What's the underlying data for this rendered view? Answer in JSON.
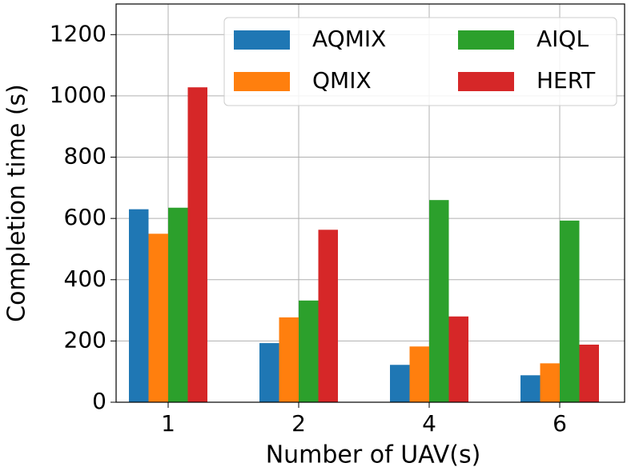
{
  "chart_data": {
    "type": "bar",
    "x_label": "Number of UAV(s)",
    "y_label": "Completion time (s)",
    "categories": [
      "1",
      "2",
      "4",
      "6"
    ],
    "series": [
      {
        "name": "AQMIX",
        "color": "#1f77b4",
        "values": [
          630,
          193,
          122,
          88
        ]
      },
      {
        "name": "QMIX",
        "color": "#ff7f0e",
        "values": [
          550,
          277,
          182,
          127
        ]
      },
      {
        "name": "AIQL",
        "color": "#2ca02c",
        "values": [
          635,
          332,
          660,
          593
        ]
      },
      {
        "name": "HERT",
        "color": "#d62728",
        "values": [
          1028,
          563,
          280,
          188
        ]
      }
    ],
    "ylim": [
      0,
      1300
    ],
    "yticks": [
      0,
      200,
      400,
      600,
      800,
      1000,
      1200
    ],
    "grid": true,
    "legend": "upper right"
  }
}
